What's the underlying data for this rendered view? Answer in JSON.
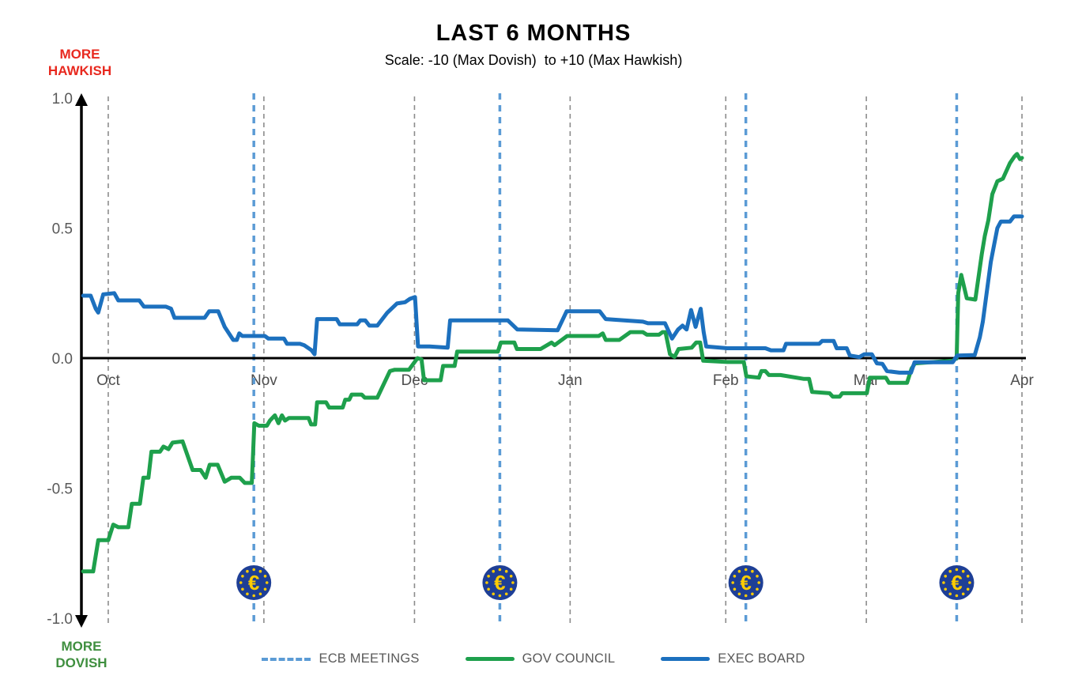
{
  "header": {
    "title": "LAST 6 MONTHS",
    "subtitle": "Scale: -10 (Max Dovish)  to +10 (Max Hawkish)"
  },
  "axis_annotations": {
    "top_line1": "MORE",
    "top_line2": "HAWKISH",
    "top_color": "#e8291f",
    "bottom_line1": "MORE",
    "bottom_line2": "DOVISH",
    "bottom_color": "#3f8f3f"
  },
  "legend": [
    {
      "label": "ECB MEETINGS",
      "style": "dashed",
      "color": "#5b9bd5"
    },
    {
      "label": "GOV COUNCIL",
      "style": "solid",
      "color": "#1ea04c"
    },
    {
      "label": "EXEC BOARD",
      "style": "solid",
      "color": "#1c70be"
    }
  ],
  "colors": {
    "month_gridline": "#8c8c8c",
    "meeting_line": "#5b9bd5",
    "axis": "#000000",
    "tick_label": "#595959",
    "month_label": "#4d4d4d",
    "coin_fill": "#1e3f96",
    "coin_accent": "#ffcc00"
  },
  "euro_coin": {
    "symbol": "€",
    "star_count": 12
  },
  "chart_data": {
    "type": "line",
    "title": "LAST 6 MONTHS",
    "subtitle": "Scale: -10 (Max Dovish) to +10 (Max Hawkish)",
    "x_unit": "days from series start (series begins ~5 days before Oct 1, ends Apr 1)",
    "ylim": [
      -1.0,
      1.0
    ],
    "grid": "vertical-dashed-at-month-starts",
    "legend_position": "bottom",
    "y_ticks": [
      {
        "label": "1.0",
        "value": 1.0
      },
      {
        "label": "0.5",
        "value": 0.5
      },
      {
        "label": "0.0",
        "value": 0.0
      },
      {
        "label": "-0.5",
        "value": -0.5
      },
      {
        "label": "-1.0",
        "value": -1.0
      }
    ],
    "month_ticks": [
      {
        "label": "Oct",
        "day": 5
      },
      {
        "label": "Nov",
        "day": 36
      },
      {
        "label": "Dec",
        "day": 66
      },
      {
        "label": "Jan",
        "day": 97
      },
      {
        "label": "Feb",
        "day": 128
      },
      {
        "label": "Mar",
        "day": 156
      },
      {
        "label": "Apr",
        "day": 187
      }
    ],
    "ecb_meeting_days": [
      34,
      83,
      132,
      174
    ],
    "series": [
      {
        "name": "GOV COUNCIL",
        "color": "#1ea04c",
        "points": [
          [
            0,
            -0.82
          ],
          [
            2,
            -0.82
          ],
          [
            3,
            -0.7
          ],
          [
            5,
            -0.7
          ],
          [
            6,
            -0.64
          ],
          [
            7,
            -0.65
          ],
          [
            9,
            -0.65
          ],
          [
            9.7,
            -0.56
          ],
          [
            11.3,
            -0.56
          ],
          [
            12,
            -0.46
          ],
          [
            13,
            -0.46
          ],
          [
            13.6,
            -0.36
          ],
          [
            15.3,
            -0.36
          ],
          [
            16,
            -0.34
          ],
          [
            17,
            -0.35
          ],
          [
            17.8,
            -0.325
          ],
          [
            19.8,
            -0.32
          ],
          [
            21.8,
            -0.43
          ],
          [
            23.4,
            -0.43
          ],
          [
            24.4,
            -0.46
          ],
          [
            25.2,
            -0.41
          ],
          [
            26.8,
            -0.41
          ],
          [
            28.2,
            -0.475
          ],
          [
            29.5,
            -0.46
          ],
          [
            31.2,
            -0.46
          ],
          [
            32.2,
            -0.48
          ],
          [
            33.6,
            -0.48
          ],
          [
            34.1,
            -0.25
          ],
          [
            35,
            -0.26
          ],
          [
            36.6,
            -0.26
          ],
          [
            37.2,
            -0.24
          ],
          [
            38.2,
            -0.22
          ],
          [
            38.9,
            -0.25
          ],
          [
            39.6,
            -0.22
          ],
          [
            40.2,
            -0.24
          ],
          [
            41,
            -0.23
          ],
          [
            44.9,
            -0.23
          ],
          [
            45.4,
            -0.255
          ],
          [
            46.2,
            -0.255
          ],
          [
            46.6,
            -0.17
          ],
          [
            48.4,
            -0.17
          ],
          [
            49,
            -0.19
          ],
          [
            51.7,
            -0.19
          ],
          [
            52.2,
            -0.16
          ],
          [
            53,
            -0.16
          ],
          [
            53.5,
            -0.14
          ],
          [
            55.5,
            -0.14
          ],
          [
            56.1,
            -0.152
          ],
          [
            58.6,
            -0.152
          ],
          [
            61.1,
            -0.05
          ],
          [
            62,
            -0.045
          ],
          [
            64.9,
            -0.045
          ],
          [
            66.6,
            0
          ],
          [
            67.4,
            -0.005
          ],
          [
            67.9,
            -0.085
          ],
          [
            71.2,
            -0.085
          ],
          [
            71.7,
            -0.03
          ],
          [
            74,
            -0.03
          ],
          [
            74.5,
            0.025
          ],
          [
            82.6,
            0.025
          ],
          [
            83.2,
            0.06
          ],
          [
            85.9,
            0.06
          ],
          [
            86.4,
            0.035
          ],
          [
            91.1,
            0.035
          ],
          [
            93.3,
            0.06
          ],
          [
            93.9,
            0.05
          ],
          [
            96.4,
            0.085
          ],
          [
            102.7,
            0.085
          ],
          [
            103.5,
            0.095
          ],
          [
            104.1,
            0.07
          ],
          [
            106.8,
            0.07
          ],
          [
            109,
            0.1
          ],
          [
            111.5,
            0.1
          ],
          [
            112.3,
            0.09
          ],
          [
            114.7,
            0.09
          ],
          [
            115.4,
            0.1
          ],
          [
            116,
            0.1
          ],
          [
            116.9,
            0.015
          ],
          [
            117.8,
            0.005
          ],
          [
            118.6,
            0.035
          ],
          [
            121.2,
            0.04
          ],
          [
            122.1,
            0.06
          ],
          [
            122.9,
            0.06
          ],
          [
            123.5,
            -0.01
          ],
          [
            128.3,
            -0.015
          ],
          [
            131.6,
            -0.015
          ],
          [
            132.1,
            -0.07
          ],
          [
            134.6,
            -0.075
          ],
          [
            135.1,
            -0.05
          ],
          [
            135.9,
            -0.05
          ],
          [
            136.6,
            -0.065
          ],
          [
            138.9,
            -0.065
          ],
          [
            143.6,
            -0.08
          ],
          [
            144.6,
            -0.08
          ],
          [
            145.2,
            -0.13
          ],
          [
            148.7,
            -0.135
          ],
          [
            149.3,
            -0.148
          ],
          [
            150.7,
            -0.148
          ],
          [
            151.2,
            -0.135
          ],
          [
            156.1,
            -0.135
          ],
          [
            156.7,
            -0.075
          ],
          [
            159.9,
            -0.075
          ],
          [
            160.5,
            -0.095
          ],
          [
            164.1,
            -0.095
          ],
          [
            165,
            -0.04
          ],
          [
            165.7,
            -0.02
          ],
          [
            173.2,
            -0.01
          ],
          [
            174,
            0
          ],
          [
            174.3,
            0.25
          ],
          [
            174.9,
            0.32
          ],
          [
            176,
            0.23
          ],
          [
            177.7,
            0.225
          ],
          [
            179,
            0.4
          ],
          [
            179.6,
            0.47
          ],
          [
            180.3,
            0.53
          ],
          [
            181.1,
            0.63
          ],
          [
            182.1,
            0.68
          ],
          [
            183.2,
            0.69
          ],
          [
            184.6,
            0.75
          ],
          [
            185.5,
            0.775
          ],
          [
            186,
            0.785
          ],
          [
            186.6,
            0.765
          ],
          [
            187,
            0.77
          ]
        ]
      },
      {
        "name": "EXEC BOARD",
        "color": "#1c70be",
        "points": [
          [
            0,
            0.24
          ],
          [
            1.5,
            0.24
          ],
          [
            2.5,
            0.19
          ],
          [
            3,
            0.175
          ],
          [
            4,
            0.245
          ],
          [
            6.2,
            0.25
          ],
          [
            7,
            0.222
          ],
          [
            11.2,
            0.222
          ],
          [
            12.1,
            0.198
          ],
          [
            16.5,
            0.198
          ],
          [
            17.5,
            0.19
          ],
          [
            18.2,
            0.155
          ],
          [
            24.2,
            0.155
          ],
          [
            25.1,
            0.18
          ],
          [
            26.9,
            0.18
          ],
          [
            28.2,
            0.12
          ],
          [
            29.9,
            0.07
          ],
          [
            30.6,
            0.07
          ],
          [
            31.1,
            0.095
          ],
          [
            31.7,
            0.085
          ],
          [
            36.2,
            0.085
          ],
          [
            36.9,
            0.075
          ],
          [
            40,
            0.075
          ],
          [
            40.6,
            0.055
          ],
          [
            43.2,
            0.055
          ],
          [
            44,
            0.05
          ],
          [
            45.5,
            0.03
          ],
          [
            46.1,
            0.015
          ],
          [
            46.6,
            0.15
          ],
          [
            50.5,
            0.15
          ],
          [
            51.1,
            0.13
          ],
          [
            54.6,
            0.13
          ],
          [
            55.2,
            0.145
          ],
          [
            56.2,
            0.145
          ],
          [
            57,
            0.125
          ],
          [
            58.6,
            0.125
          ],
          [
            60.6,
            0.175
          ],
          [
            62.5,
            0.21
          ],
          [
            64.1,
            0.215
          ],
          [
            65.1,
            0.228
          ],
          [
            66.1,
            0.235
          ],
          [
            66.7,
            0.045
          ],
          [
            69,
            0.045
          ],
          [
            72.6,
            0.04
          ],
          [
            73.1,
            0.145
          ],
          [
            84.6,
            0.145
          ],
          [
            86.5,
            0.11
          ],
          [
            94.5,
            0.107
          ],
          [
            96.3,
            0.18
          ],
          [
            102.9,
            0.18
          ],
          [
            104.1,
            0.15
          ],
          [
            111.5,
            0.14
          ],
          [
            112.5,
            0.134
          ],
          [
            115.9,
            0.134
          ],
          [
            117.3,
            0.075
          ],
          [
            118.5,
            0.11
          ],
          [
            119.4,
            0.125
          ],
          [
            120.2,
            0.11
          ],
          [
            121.1,
            0.185
          ],
          [
            122,
            0.12
          ],
          [
            123,
            0.19
          ],
          [
            123.6,
            0.1
          ],
          [
            124.1,
            0.045
          ],
          [
            128.3,
            0.038
          ],
          [
            135.9,
            0.038
          ],
          [
            137,
            0.03
          ],
          [
            139.5,
            0.03
          ],
          [
            140,
            0.055
          ],
          [
            146.6,
            0.055
          ],
          [
            147.2,
            0.066
          ],
          [
            149.5,
            0.066
          ],
          [
            150.1,
            0.038
          ],
          [
            152.1,
            0.038
          ],
          [
            152.7,
            0.01
          ],
          [
            154.6,
            0.004
          ],
          [
            155.6,
            0.015
          ],
          [
            157.1,
            0.015
          ],
          [
            158.1,
            -0.02
          ],
          [
            159.2,
            -0.022
          ],
          [
            160.1,
            -0.05
          ],
          [
            162.6,
            -0.056
          ],
          [
            164.9,
            -0.056
          ],
          [
            165.6,
            -0.016
          ],
          [
            173.2,
            -0.016
          ],
          [
            174.1,
            0.01
          ],
          [
            177.6,
            0.012
          ],
          [
            178.6,
            0.08
          ],
          [
            179.2,
            0.14
          ],
          [
            180.1,
            0.27
          ],
          [
            180.8,
            0.37
          ],
          [
            181.6,
            0.45
          ],
          [
            182.1,
            0.5
          ],
          [
            182.8,
            0.525
          ],
          [
            184.6,
            0.525
          ],
          [
            185.4,
            0.545
          ],
          [
            187,
            0.545
          ]
        ]
      }
    ]
  }
}
